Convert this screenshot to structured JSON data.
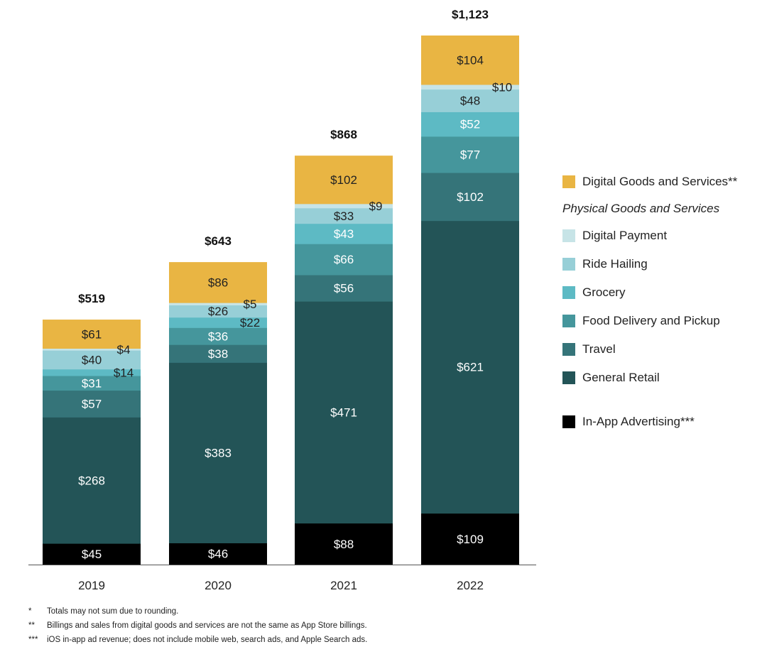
{
  "chart_data": {
    "type": "bar",
    "stacked": true,
    "categories": [
      "2019",
      "2020",
      "2021",
      "2022"
    ],
    "totals": [
      "$519",
      "$643",
      "$868",
      "$1,123"
    ],
    "ylim": [
      0,
      1123
    ],
    "grid": false,
    "legend_position": "right",
    "series": [
      {
        "name": "In-App Advertising***",
        "color": "#000000",
        "values": [
          45,
          46,
          88,
          109
        ]
      },
      {
        "name": "General Retail",
        "color": "#235457",
        "values": [
          268,
          383,
          471,
          621
        ]
      },
      {
        "name": "Travel",
        "color": "#357479",
        "values": [
          57,
          38,
          56,
          102
        ]
      },
      {
        "name": "Food Delivery and Pickup",
        "color": "#45969c",
        "values": [
          31,
          36,
          66,
          77
        ]
      },
      {
        "name": "Grocery",
        "color": "#5dbac4",
        "values": [
          14,
          22,
          43,
          52
        ]
      },
      {
        "name": "Ride Hailing",
        "color": "#97cfd7",
        "values": [
          40,
          26,
          33,
          48
        ]
      },
      {
        "name": "Digital Payment",
        "color": "#c7e4e7",
        "values": [
          4,
          5,
          9,
          10
        ]
      },
      {
        "name": "Digital Goods and Services**",
        "color": "#e9b543",
        "values": [
          61,
          86,
          102,
          104
        ]
      }
    ]
  },
  "legend": {
    "digital": "Digital Goods and Services**",
    "physical_heading": "Physical Goods and Services",
    "physical": [
      "Digital Payment",
      "Ride Hailing",
      "Grocery",
      "Food Delivery and Pickup",
      "Travel",
      "General Retail"
    ],
    "ads": "In-App Advertising***"
  },
  "footnotes": [
    {
      "mark": "*",
      "text": "Totals may not sum due to rounding."
    },
    {
      "mark": "**",
      "text": "Billings and sales from digital goods and services are not the same as App Store billings."
    },
    {
      "mark": "***",
      "text": "iOS in-app ad revenue; does not include mobile web, search ads, and Apple Search ads."
    }
  ]
}
